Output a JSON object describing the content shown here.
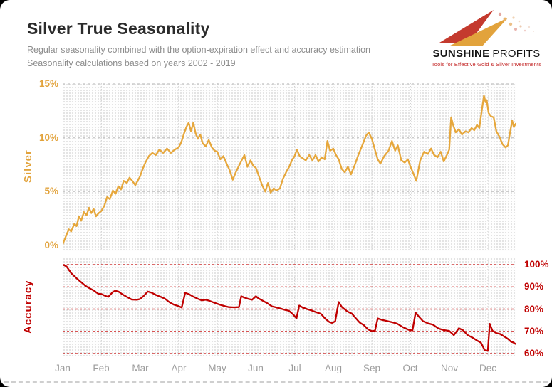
{
  "header": {
    "title": "Silver True Seasonality",
    "subtitle_line1": "Regular seasonality combined with the option-expiration effect and accuracy estimation",
    "subtitle_line2": "Seasonality calculations based on years 2002 - 2019"
  },
  "logo": {
    "brand_primary": "SUNSHINE",
    "brand_secondary": "PROFITS",
    "tagline": "Tools for Effective Gold & Silver Investments"
  },
  "colors": {
    "silver_line": "#E6A73C",
    "accuracy_line": "#C00000",
    "red_grid": "#CC1A1A",
    "gray_vgrid": "#CCCCCC",
    "gray_hgrid": "#C6C6C6",
    "month_label": "#9C9C9C"
  },
  "chart_data": [
    {
      "type": "line",
      "name": "silver-true-seasonality",
      "ylabel": "Silver",
      "color": "#E6A73C",
      "ylim": [
        -0.6,
        15
      ],
      "gridlines": [
        5,
        10,
        15
      ],
      "y_ticks": [
        {
          "value": 15,
          "label": "15%"
        },
        {
          "value": 10,
          "label": "10%"
        },
        {
          "value": 5,
          "label": "5%"
        },
        {
          "value": 0,
          "label": "0%"
        }
      ],
      "x_axis_labels": [
        "Jan",
        "Feb",
        "Mar",
        "Apr",
        "May",
        "Jun",
        "Jul",
        "Aug",
        "Sep",
        "Oct",
        "Nov",
        "Dec"
      ],
      "x_months": [
        0,
        0.1,
        0.16,
        0.22,
        0.3,
        0.36,
        0.42,
        0.48,
        0.55,
        0.62,
        0.68,
        0.74,
        0.8,
        0.86,
        0.93,
        1,
        1.08,
        1.15,
        1.22,
        1.3,
        1.37,
        1.44,
        1.51,
        1.58,
        1.66,
        1.73,
        1.8,
        1.88,
        2,
        2.07,
        2.14,
        2.23,
        2.32,
        2.41,
        2.5,
        2.6,
        2.7,
        2.8,
        2.9,
        3,
        3.07,
        3.14,
        3.2,
        3.26,
        3.32,
        3.38,
        3.44,
        3.5,
        3.56,
        3.62,
        3.7,
        3.78,
        3.86,
        3.93,
        4,
        4.08,
        4.16,
        4.24,
        4.32,
        4.4,
        4.48,
        4.56,
        4.63,
        4.7,
        4.78,
        4.86,
        4.93,
        5,
        5.08,
        5.16,
        5.24,
        5.31,
        5.38,
        5.46,
        5.54,
        5.62,
        5.7,
        5.78,
        5.86,
        5.93,
        6,
        6.06,
        6.13,
        6.21,
        6.29,
        6.38,
        6.46,
        6.54,
        6.62,
        6.7,
        6.78,
        6.85,
        6.92,
        7,
        7.07,
        7.14,
        7.22,
        7.3,
        7.38,
        7.46,
        7.55,
        7.65,
        7.75,
        7.85,
        7.92,
        8,
        8.07,
        8.15,
        8.22,
        8.32,
        8.43,
        8.52,
        8.6,
        8.67,
        8.76,
        8.85,
        8.93,
        9,
        9.07,
        9.15,
        9.25,
        9.35,
        9.45,
        9.53,
        9.61,
        9.7,
        9.78,
        9.86,
        9.94,
        10,
        10.05,
        10.1,
        10.17,
        10.25,
        10.33,
        10.42,
        10.5,
        10.58,
        10.65,
        10.72,
        10.78,
        10.83,
        10.87,
        10.9,
        10.94,
        10.97,
        11.02,
        11.08,
        11.15,
        11.22,
        11.3,
        11.38,
        11.46,
        11.52,
        11.58,
        11.63,
        11.67,
        11.72
      ],
      "values": [
        0.1,
        1,
        1.5,
        1.3,
        2,
        1.8,
        2.7,
        2.3,
        3.1,
        2.8,
        3.5,
        3,
        3.4,
        2.7,
        3,
        3.2,
        3.7,
        4.5,
        4.3,
        5.1,
        4.8,
        5.5,
        5.2,
        6,
        5.8,
        6.3,
        6,
        5.6,
        6.4,
        7.1,
        7.7,
        8.3,
        8.6,
        8.4,
        8.9,
        8.6,
        9,
        8.6,
        8.9,
        9.1,
        9.6,
        10.4,
        11,
        11.4,
        10.6,
        11.4,
        10.4,
        9.9,
        10.3,
        9.5,
        9.2,
        9.8,
        9.1,
        8.8,
        8.7,
        8,
        8.3,
        7.6,
        7,
        6.1,
        6.8,
        7.4,
        7.9,
        8.4,
        7.3,
        7.9,
        7.4,
        7.2,
        6.4,
        5.6,
        5,
        5.8,
        4.9,
        5.3,
        5.1,
        5.3,
        6.2,
        6.8,
        7.3,
        7.9,
        8.3,
        8.9,
        8.3,
        8.1,
        7.9,
        8.4,
        7.9,
        8.4,
        7.8,
        8.2,
        8,
        9.7,
        8.8,
        9,
        8.4,
        8,
        7.1,
        6.8,
        7.3,
        6.6,
        7.4,
        8.4,
        9.3,
        10.2,
        10.5,
        9.9,
        9,
        8,
        7.6,
        8.3,
        8.8,
        9.7,
        8.8,
        9.3,
        7.9,
        7.7,
        8,
        7.3,
        6.7,
        6,
        7.9,
        8.7,
        8.5,
        9,
        8.4,
        8.2,
        8.7,
        7.8,
        8.4,
        8.9,
        11.9,
        11.2,
        10.5,
        10.8,
        10.3,
        10.6,
        10.5,
        10.9,
        10.7,
        11.2,
        10.9,
        12.2,
        13.2,
        13.9,
        13.3,
        13.5,
        12.3,
        12,
        11.9,
        10.6,
        10.1,
        9.4,
        9.1,
        9.3,
        10.6,
        11.6,
        11,
        11.3
      ]
    },
    {
      "type": "line",
      "name": "accuracy",
      "ylabel": "Accuracy",
      "color": "#C00000",
      "ylim": [
        59,
        103.2
      ],
      "gridlines": [
        60,
        70,
        80,
        90,
        100
      ],
      "y_ticks": [
        {
          "value": 100,
          "label": "100%"
        },
        {
          "value": 90,
          "label": "90%"
        },
        {
          "value": 80,
          "label": "80%"
        },
        {
          "value": 70,
          "label": "70%"
        },
        {
          "value": 60,
          "label": "60%"
        }
      ],
      "x_months": [
        0,
        0.1,
        0.22,
        0.37,
        0.5,
        0.59,
        0.7,
        0.8,
        0.92,
        1,
        1.1,
        1.18,
        1.29,
        1.36,
        1.45,
        1.55,
        1.65,
        1.79,
        1.92,
        2,
        2.1,
        2.2,
        2.3,
        2.42,
        2.55,
        2.65,
        2.77,
        2.88,
        3,
        3.08,
        3.17,
        3.26,
        3.38,
        3.5,
        3.6,
        3.7,
        3.8,
        3.9,
        4,
        4.1,
        4.2,
        4.3,
        4.43,
        4.56,
        4.62,
        4.7,
        4.8,
        4.9,
        5,
        5.06,
        5.15,
        5.3,
        5.42,
        5.54,
        5.65,
        5.76,
        5.85,
        5.95,
        6.05,
        6.12,
        6.2,
        6.32,
        6.44,
        6.56,
        6.68,
        6.8,
        6.9,
        6.97,
        7.05,
        7.14,
        7.22,
        7.36,
        7.48,
        7.58,
        7.68,
        7.79,
        7.9,
        8,
        8.08,
        8.15,
        8.25,
        8.38,
        8.52,
        8.65,
        8.8,
        8.95,
        9.05,
        9.13,
        9.22,
        9.32,
        9.45,
        9.58,
        9.72,
        9.85,
        10,
        10.12,
        10.25,
        10.35,
        10.48,
        10.6,
        10.72,
        10.82,
        10.92,
        11,
        11.05,
        11.12,
        11.22,
        11.32,
        11.42,
        11.52,
        11.6,
        11.66,
        11.72
      ],
      "values": [
        100,
        99.2,
        96.2,
        93.7,
        91.8,
        90.5,
        89.3,
        88.4,
        86.9,
        86.8,
        86,
        85.5,
        87.6,
        88.3,
        87.8,
        86.6,
        85.6,
        84.3,
        84.2,
        84.5,
        86,
        87.9,
        87.4,
        86.3,
        85.4,
        84.6,
        83,
        82,
        81.3,
        80.7,
        87.3,
        86.8,
        85.6,
        84.6,
        83.9,
        84.2,
        83.7,
        83,
        82.4,
        81.8,
        81.3,
        80.9,
        80.8,
        80.9,
        85.8,
        85.2,
        84.6,
        84.2,
        85.8,
        84.9,
        84,
        82.6,
        81.2,
        80.7,
        80.2,
        79.6,
        79.3,
        77.8,
        75.9,
        81.6,
        80.8,
        80,
        79.4,
        78.6,
        77.9,
        75.6,
        74.2,
        73.8,
        74.5,
        83.2,
        81,
        79,
        78,
        76,
        74,
        72.8,
        70.9,
        70.1,
        70.3,
        75.8,
        75.2,
        74.7,
        74.1,
        73.5,
        71.9,
        70.7,
        70.4,
        78.4,
        76.5,
        74.6,
        73.6,
        73,
        71.3,
        70.6,
        70.2,
        68.3,
        71.4,
        70.6,
        68.3,
        67.2,
        65.9,
        64.9,
        61.5,
        61.2,
        73.4,
        70.3,
        69.2,
        68.8,
        67.7,
        66.6,
        65.3,
        65,
        64.3
      ]
    }
  ]
}
